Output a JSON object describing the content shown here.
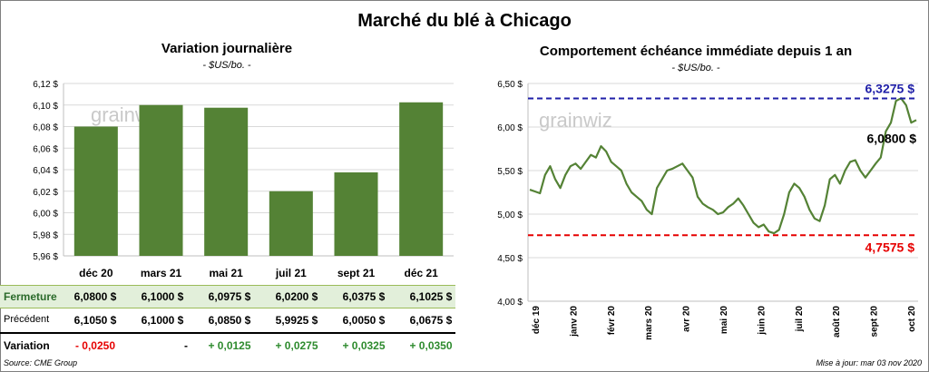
{
  "title": "Marché du blé à Chicago",
  "left_panel": {
    "title": "Variation  journalière",
    "subtitle": "- $US/bo. -",
    "watermark": "grainwiz"
  },
  "right_panel": {
    "title": "Comportement  échéance immédiate depuis 1 an",
    "subtitle": "- $US/bo. -",
    "watermark": "grainwiz"
  },
  "table": {
    "rows": [
      {
        "label": "Fermeture",
        "values": [
          "6,0800  $",
          "6,1000  $",
          "6,0975  $",
          "6,0200  $",
          "6,0375  $",
          "6,1025  $"
        ]
      },
      {
        "label": "Précédent",
        "values": [
          "6,1050  $",
          "6,1000  $",
          "6,0850  $",
          "5,9925  $",
          "6,0050  $",
          "6,0675  $"
        ]
      },
      {
        "label": "Variation",
        "values": [
          "- 0,0250",
          "-",
          "+ 0,0125",
          "+ 0,0275",
          "+ 0,0325",
          "+ 0,0350"
        ]
      }
    ]
  },
  "source": "Source: CME Group",
  "updated": "Mise à jour: mar 03 nov 2020",
  "colors": {
    "bar": "#548235",
    "line": "#548235",
    "high": "#1f1fa8",
    "low": "#e60000",
    "table_highlight": "#e2efda",
    "positive": "#2e8b2e",
    "negative": "#e60000"
  },
  "chart_data": [
    {
      "type": "bar",
      "categories": [
        "déc 20",
        "mars 21",
        "mai 21",
        "juil 21",
        "sept 21",
        "déc 21"
      ],
      "values": [
        6.08,
        6.1,
        6.0975,
        6.02,
        6.0375,
        6.1025
      ],
      "ylim": [
        5.96,
        6.12
      ],
      "yticks": [
        "5,96 $",
        "5,98 $",
        "6,00 $",
        "6,02 $",
        "6,04 $",
        "6,06 $",
        "6,08 $",
        "6,10 $",
        "6,12 $"
      ],
      "grid": true
    },
    {
      "type": "line",
      "x_labels": [
        "déc 19",
        "janv 20",
        "févr 20",
        "mars 20",
        "avr 20",
        "mai 20",
        "juin 20",
        "juil 20",
        "août 20",
        "sept 20",
        "oct 20"
      ],
      "ylim": [
        4.0,
        6.5
      ],
      "yticks": [
        "4,00 $",
        "4,50 $",
        "5,00 $",
        "5,50 $",
        "6,00 $",
        "6,50 $"
      ],
      "grid": true,
      "values": [
        5.28,
        5.26,
        5.24,
        5.45,
        5.55,
        5.4,
        5.3,
        5.45,
        5.55,
        5.58,
        5.52,
        5.6,
        5.68,
        5.65,
        5.78,
        5.72,
        5.6,
        5.55,
        5.5,
        5.35,
        5.25,
        5.2,
        5.15,
        5.05,
        5.0,
        5.3,
        5.4,
        5.5,
        5.52,
        5.55,
        5.58,
        5.5,
        5.42,
        5.2,
        5.12,
        5.08,
        5.05,
        5.0,
        5.02,
        5.08,
        5.12,
        5.18,
        5.1,
        5.0,
        4.9,
        4.85,
        4.88,
        4.8,
        4.78,
        4.82,
        5.0,
        5.25,
        5.35,
        5.3,
        5.2,
        5.05,
        4.95,
        4.92,
        5.1,
        5.4,
        5.45,
        5.35,
        5.5,
        5.6,
        5.62,
        5.5,
        5.42,
        5.5,
        5.58,
        5.65,
        5.95,
        6.05,
        6.3,
        6.33,
        6.25,
        6.05,
        6.08
      ],
      "reference_lines": [
        {
          "label": "6,3275  $",
          "value": 6.3275
        },
        {
          "label": "4,7575  $",
          "value": 4.7575
        }
      ],
      "last_label": "6,0800 $",
      "last_value": 6.08
    }
  ]
}
